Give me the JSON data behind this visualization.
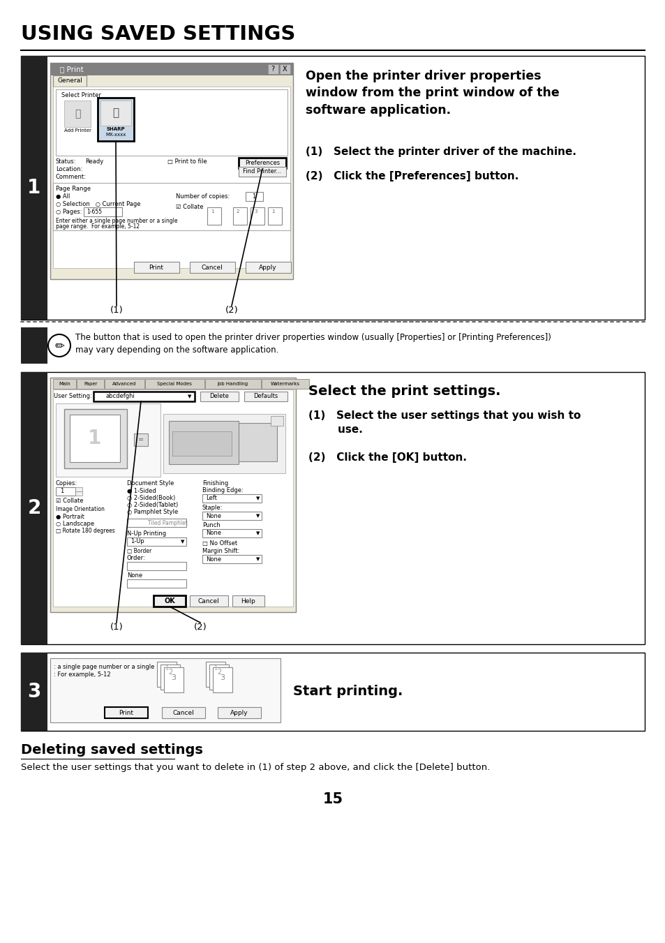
{
  "bg_color": "#ffffff",
  "title": "USING SAVED SETTINGS",
  "step1_num": "1",
  "step2_num": "2",
  "step3_num": "3",
  "step1_header": "Open the printer driver properties\nwindow from the print window of the\nsoftware application.",
  "step1_sub1": "(1)   Select the printer driver of the machine.",
  "step1_sub2": "(2)   Click the [Preferences] button.",
  "step2_header": "Select the print settings.",
  "step2_sub1": "(1)   Select the user settings that you wish to\n        use.",
  "step2_sub2": "(2)   Click the [OK] button.",
  "step3_header": "Start printing.",
  "note_text": "The button that is used to open the printer driver properties window (usually [Properties] or [Printing Preferences])\nmay vary depending on the software application.",
  "deleting_header": "Deleting saved settings",
  "deleting_body": "Select the user settings that you want to delete in (1) of step 2 above, and click the [Delete] button.",
  "page_num": "15",
  "step_bg": "#222222",
  "step_text_color": "#ffffff",
  "black": "#000000",
  "gray_light": "#f0f0f0",
  "gray_mid": "#cccccc",
  "gray_dark": "#888888",
  "gray_border": "#aaaaaa",
  "titlebar_color": "#808080",
  "tab_color": "#d4d0c8",
  "dialog_bg": "#ece9d8",
  "white": "#ffffff"
}
